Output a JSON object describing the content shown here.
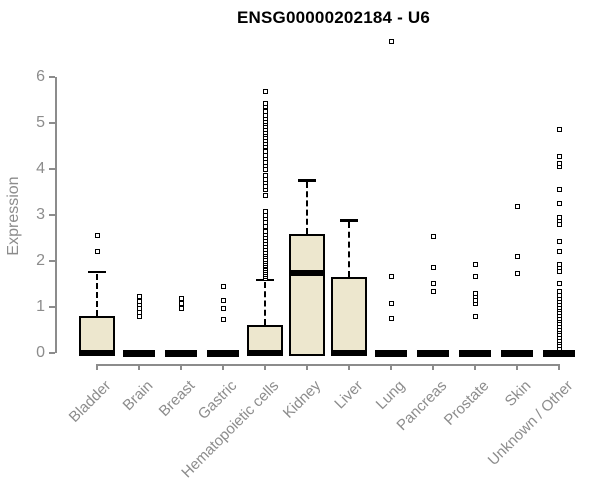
{
  "title": "ENSG00000202184 - U6",
  "ylabel": "Expression",
  "colors": {
    "box_fill": "#ede7ce",
    "box_border": "#000000",
    "axis_gray": "#8c8c8c",
    "title_color": "#000000",
    "background": "#ffffff"
  },
  "chart_data": {
    "type": "boxplot",
    "title": "ENSG00000202184 - U6",
    "xlabel": "",
    "ylabel": "Expression",
    "ylim": [
      0,
      6
    ],
    "yticks": [
      0,
      1,
      2,
      3,
      4,
      5,
      6
    ],
    "grid": false,
    "categories": [
      "Bladder",
      "Brain",
      "Breast",
      "Gastric",
      "Hematopoietic cells",
      "Kidney",
      "Liver",
      "Lung",
      "Pancreas",
      "Prostate",
      "Skin",
      "Unknown / Other"
    ],
    "boxes": [
      {
        "label": "Bladder",
        "q1": 0,
        "median": 0,
        "q3": 0.8,
        "whisker_low": 0,
        "whisker_high": 1.77,
        "outliers": [
          2.2,
          2.55
        ]
      },
      {
        "label": "Brain",
        "q1": 0,
        "median": 0,
        "q3": 0,
        "whisker_low": 0,
        "whisker_high": 0,
        "outliers": [
          0.79,
          0.88,
          0.96,
          1.05,
          1.13,
          1.22
        ]
      },
      {
        "label": "Breast",
        "q1": 0,
        "median": 0,
        "q3": 0,
        "whisker_low": 0,
        "whisker_high": 0,
        "outliers": [
          0.97,
          1.08,
          1.19
        ]
      },
      {
        "label": "Gastric",
        "q1": 0,
        "median": 0,
        "q3": 0,
        "whisker_low": 0,
        "whisker_high": 0,
        "outliers": [
          0.72,
          0.97,
          1.15,
          1.44
        ]
      },
      {
        "label": "Hematopoietic cells",
        "q1": 0,
        "median": 0,
        "q3": 0.61,
        "whisker_low": 0,
        "whisker_high": 1.59,
        "outliers": [
          1.63,
          1.67,
          1.71,
          1.75,
          1.79,
          1.83,
          1.87,
          1.91,
          1.95,
          2.0,
          2.04,
          2.09,
          2.14,
          2.19,
          2.25,
          2.31,
          2.37,
          2.44,
          2.51,
          2.58,
          2.65,
          2.76,
          2.84,
          2.92,
          3.0,
          3.08,
          3.43,
          3.55,
          3.63,
          3.7,
          3.78,
          3.85,
          3.99,
          4.07,
          4.14,
          4.22,
          4.3,
          4.38,
          4.5,
          4.56,
          4.62,
          4.68,
          4.74,
          4.8,
          4.86,
          4.92,
          4.98,
          5.04,
          5.1,
          5.17,
          5.24,
          5.35,
          5.43,
          5.68
        ]
      },
      {
        "label": "Kidney",
        "q1": 0,
        "median": 1.73,
        "q3": 2.59,
        "whisker_low": 0,
        "whisker_high": 3.76,
        "outliers": []
      },
      {
        "label": "Liver",
        "q1": 0,
        "median": 0,
        "q3": 1.65,
        "whisker_low": 0,
        "whisker_high": 2.89,
        "outliers": []
      },
      {
        "label": "Lung",
        "q1": 0,
        "median": 0,
        "q3": 0,
        "whisker_low": 0,
        "whisker_high": 0,
        "outliers": [
          0.74,
          1.08,
          1.67,
          6.78
        ]
      },
      {
        "label": "Pancreas",
        "q1": 0,
        "median": 0,
        "q3": 0,
        "whisker_low": 0,
        "whisker_high": 0,
        "outliers": [
          1.33,
          1.52,
          1.85,
          2.54
        ]
      },
      {
        "label": "Prostate",
        "q1": 0,
        "median": 0,
        "q3": 0,
        "whisker_low": 0,
        "whisker_high": 0,
        "outliers": [
          0.8,
          1.08,
          1.15,
          1.23,
          1.3,
          1.67,
          1.93
        ]
      },
      {
        "label": "Skin",
        "q1": 0,
        "median": 0,
        "q3": 0,
        "whisker_low": 0,
        "whisker_high": 0,
        "outliers": [
          1.73,
          2.1,
          3.18
        ]
      },
      {
        "label": "Unknown / Other",
        "q1": 0,
        "median": 0,
        "q3": 0,
        "whisker_low": 0,
        "whisker_high": 0,
        "outliers": [
          0.1,
          0.16,
          0.22,
          0.28,
          0.34,
          0.4,
          0.46,
          0.52,
          0.58,
          0.64,
          0.7,
          0.76,
          0.82,
          0.88,
          0.94,
          1.0,
          1.06,
          1.12,
          1.19,
          1.26,
          1.33,
          1.51,
          1.78,
          1.85,
          1.93,
          2.2,
          2.42,
          2.79,
          2.87,
          2.94,
          3.25,
          3.55,
          4.05,
          4.12,
          4.27,
          4.85
        ]
      }
    ]
  }
}
